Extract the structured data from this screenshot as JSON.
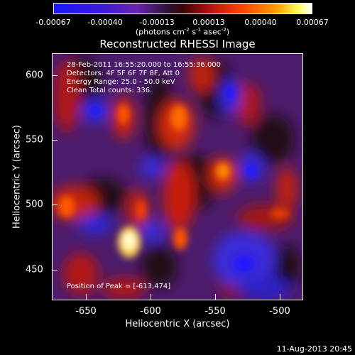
{
  "colorbar": {
    "tick_labels": [
      "-0.00067",
      "-0.00040",
      "-0.00013",
      "0.00013",
      "0.00040",
      "0.00067"
    ],
    "units_main": "(photons cm",
    "units_exp1": "-2",
    "units_s": " s",
    "units_exp2": "-1",
    "units_asec": " asec",
    "units_exp3": "-2",
    "units_close": ")"
  },
  "plot": {
    "title": "Reconstructed RHESSI Image",
    "info": [
      "28-Feb-2011 16:55:20.000 to 16:55:36.000",
      "Detectors: 4F 5F 6F 7F 8F, Att 0",
      "Energy Range: 25.0 - 50.0 keV",
      "Clean    Total counts: 336."
    ],
    "peak": "Position of Peak = [-613,474]",
    "xlabel": "Heliocentric X (arcsec)",
    "ylabel": "Heliocentric Y (arcsec)",
    "xticks": [
      "-650",
      "-600",
      "-550",
      "-500"
    ],
    "yticks": [
      "600",
      "550",
      "500",
      "450"
    ]
  },
  "footer": {
    "timestamp": "11-Aug-2013 20:45"
  }
}
